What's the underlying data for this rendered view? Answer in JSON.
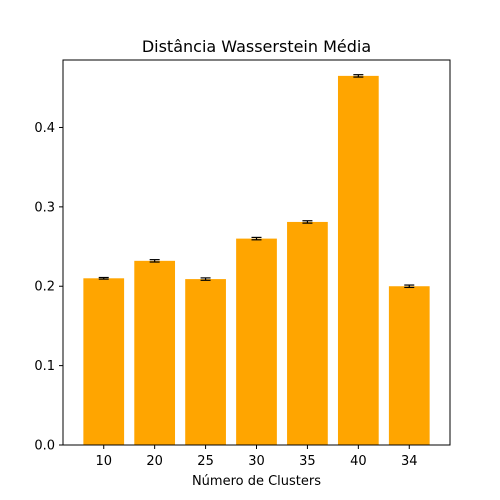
{
  "chart_data": {
    "type": "bar",
    "title": "Distância Wasserstein Média",
    "xlabel": "Número de Clusters",
    "ylabel": "",
    "categories": [
      "10",
      "20",
      "25",
      "30",
      "35",
      "40",
      "34"
    ],
    "values": [
      0.21,
      0.232,
      0.209,
      0.26,
      0.281,
      0.465,
      0.2
    ],
    "errors": [
      0.001,
      0.0015,
      0.0015,
      0.0015,
      0.0015,
      0.0015,
      0.0015
    ],
    "ylim": [
      0,
      0.485
    ],
    "yticks": [
      0.0,
      0.1,
      0.2,
      0.3,
      0.4
    ],
    "ytick_labels": [
      "0.0",
      "0.1",
      "0.2",
      "0.3",
      "0.4"
    ],
    "bar_color": "#FFA500",
    "error_color": "#000000",
    "grid": false,
    "legend": "none"
  }
}
